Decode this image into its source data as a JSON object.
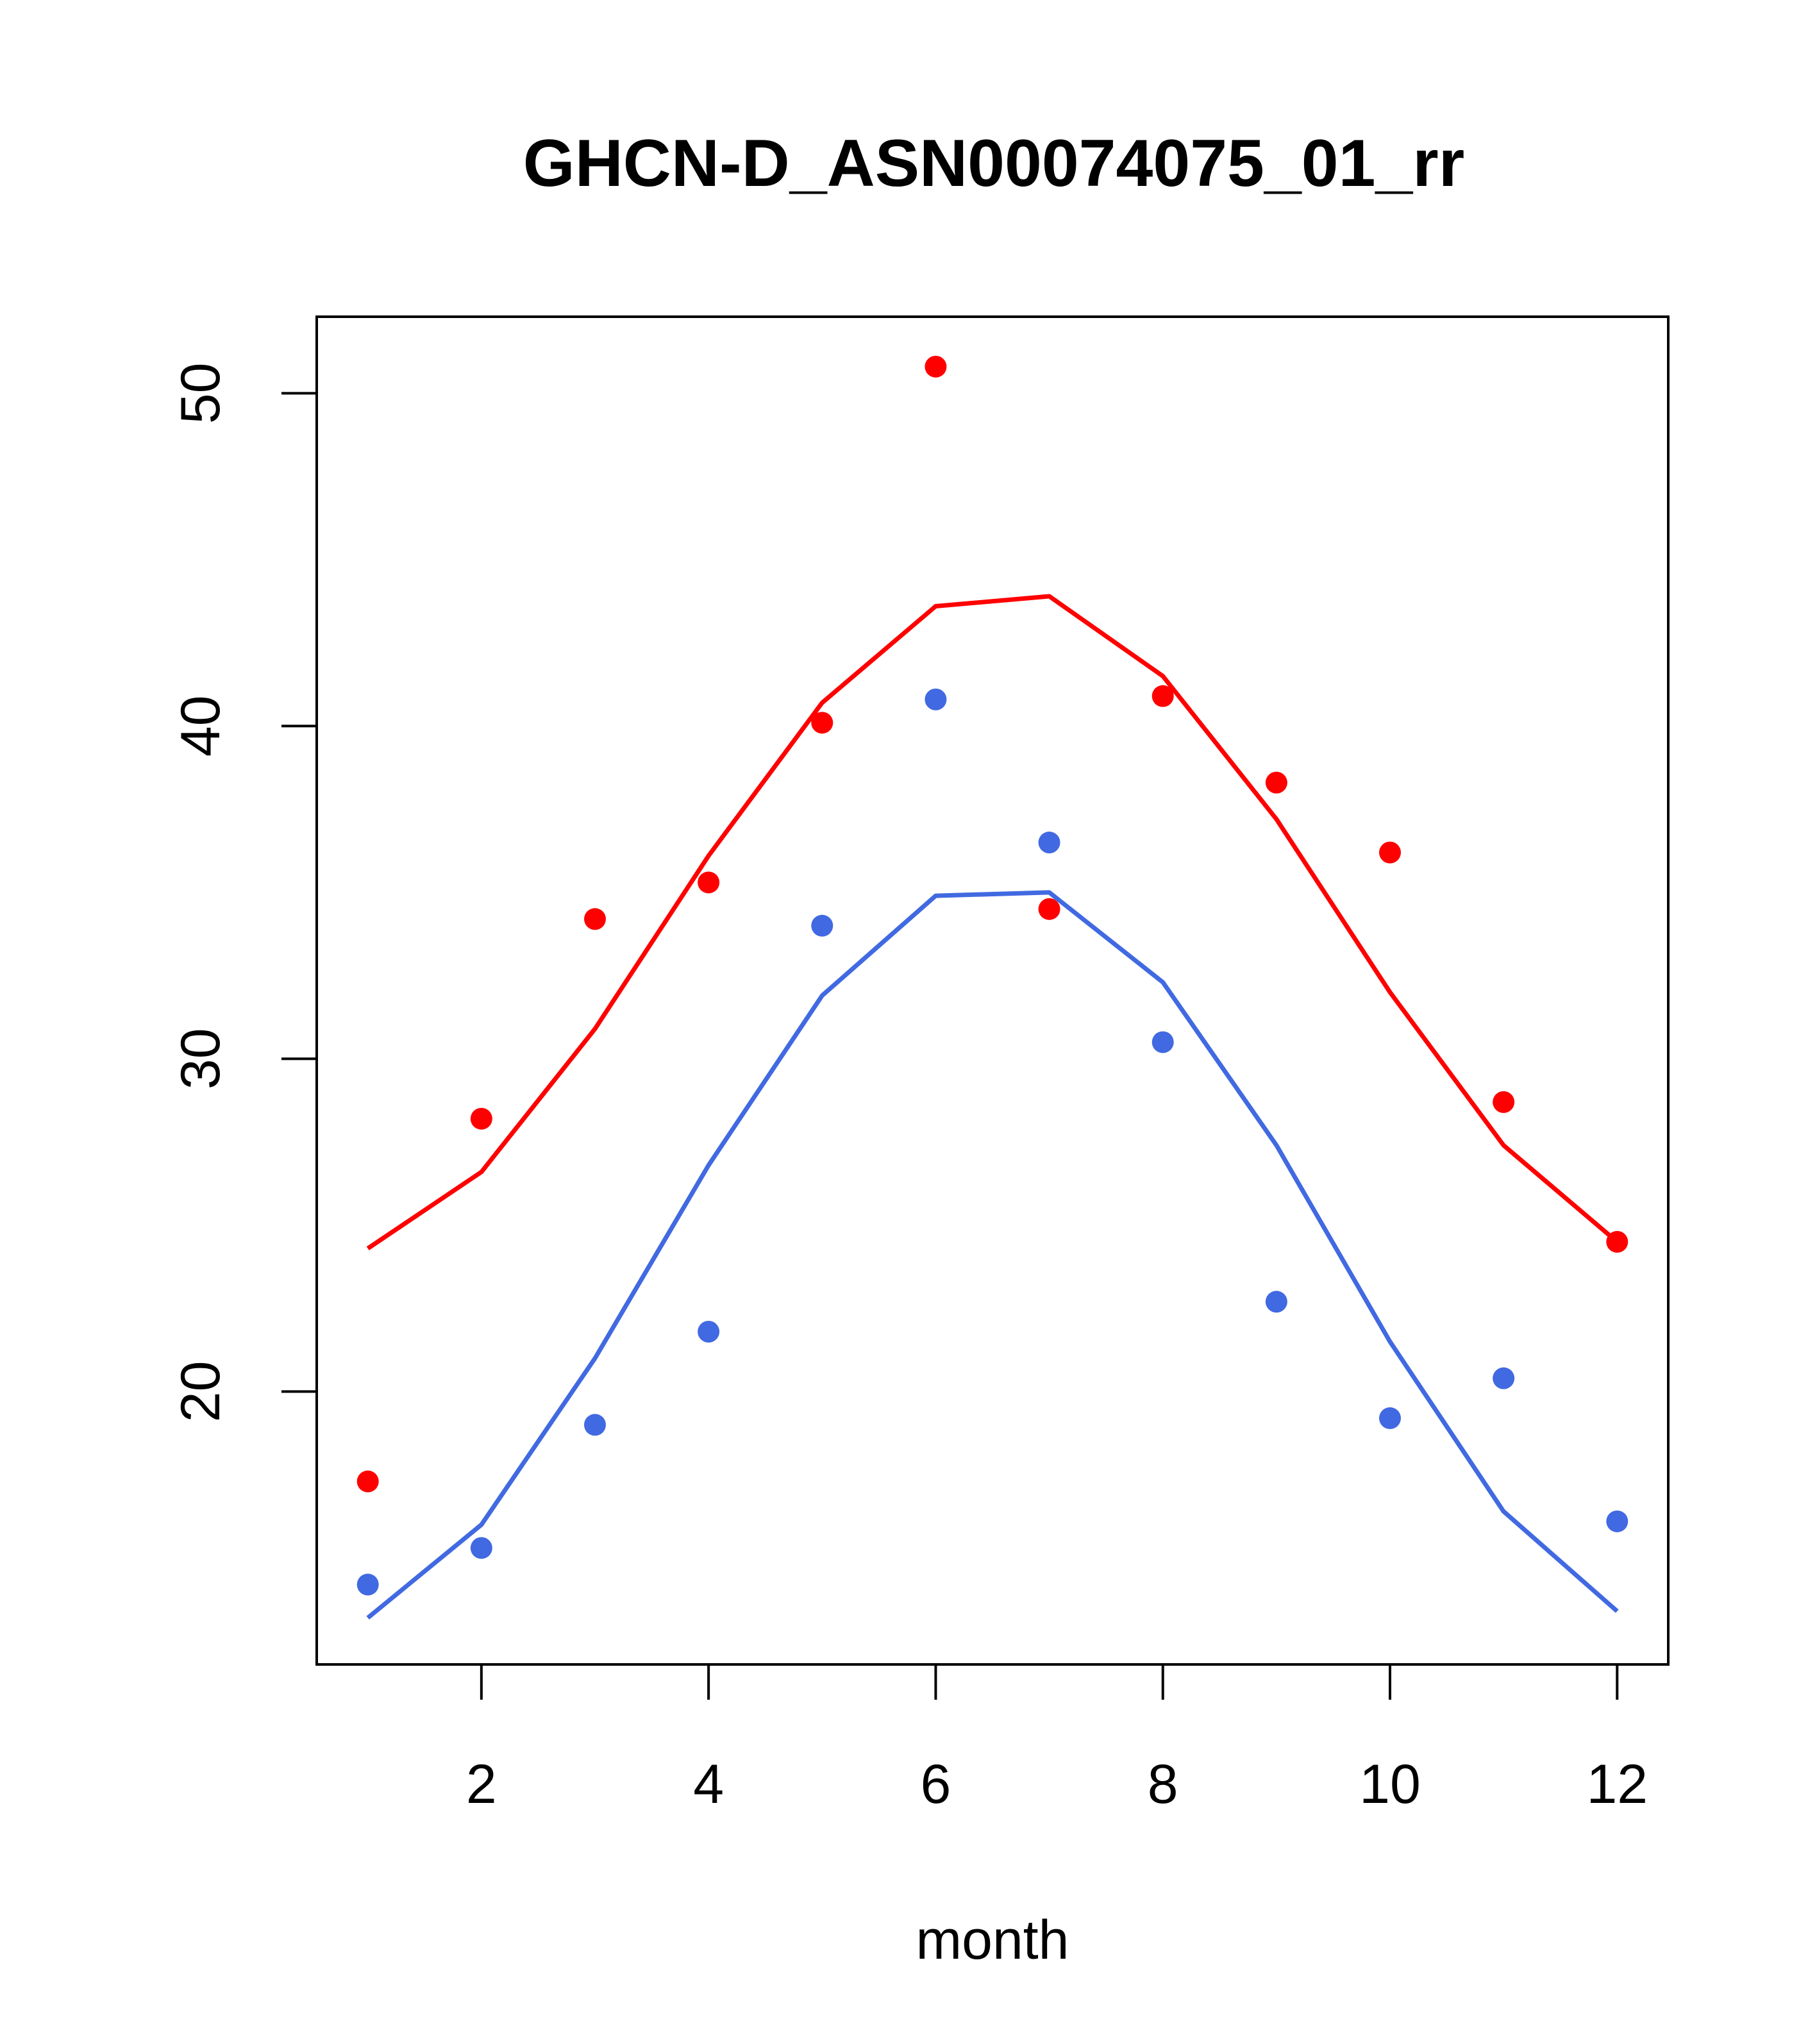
{
  "chart_data": {
    "type": "line",
    "title": "GHCN-D_ASN00074075_01_rr",
    "xlabel": "month",
    "ylabel": "",
    "xlim": [
      0.55,
      12.45
    ],
    "ylim": [
      11.8,
      52.3
    ],
    "x_ticks": [
      2,
      4,
      6,
      8,
      10,
      12
    ],
    "y_ticks": [
      20,
      30,
      40,
      50
    ],
    "grid": false,
    "legend": "none",
    "x": [
      1,
      2,
      3,
      4,
      5,
      6,
      7,
      8,
      9,
      10,
      11,
      12
    ],
    "series": [
      {
        "color": "#ff0000",
        "line": [
          24.3,
          26.6,
          30.9,
          36.1,
          40.7,
          43.6,
          43.9,
          41.5,
          37.2,
          32.0,
          27.4,
          24.5
        ],
        "points": [
          17.3,
          28.2,
          34.2,
          35.3,
          40.1,
          50.8,
          34.5,
          40.9,
          38.3,
          36.2,
          28.7,
          24.5
        ]
      },
      {
        "color": "#4169e1",
        "line": [
          13.2,
          16.0,
          21.0,
          26.8,
          31.9,
          34.9,
          35.0,
          32.3,
          27.4,
          21.5,
          16.4,
          13.4
        ],
        "points": [
          14.2,
          15.3,
          19.0,
          21.8,
          34.0,
          40.8,
          36.5,
          30.5,
          22.7,
          19.2,
          20.4,
          16.1
        ]
      }
    ]
  }
}
